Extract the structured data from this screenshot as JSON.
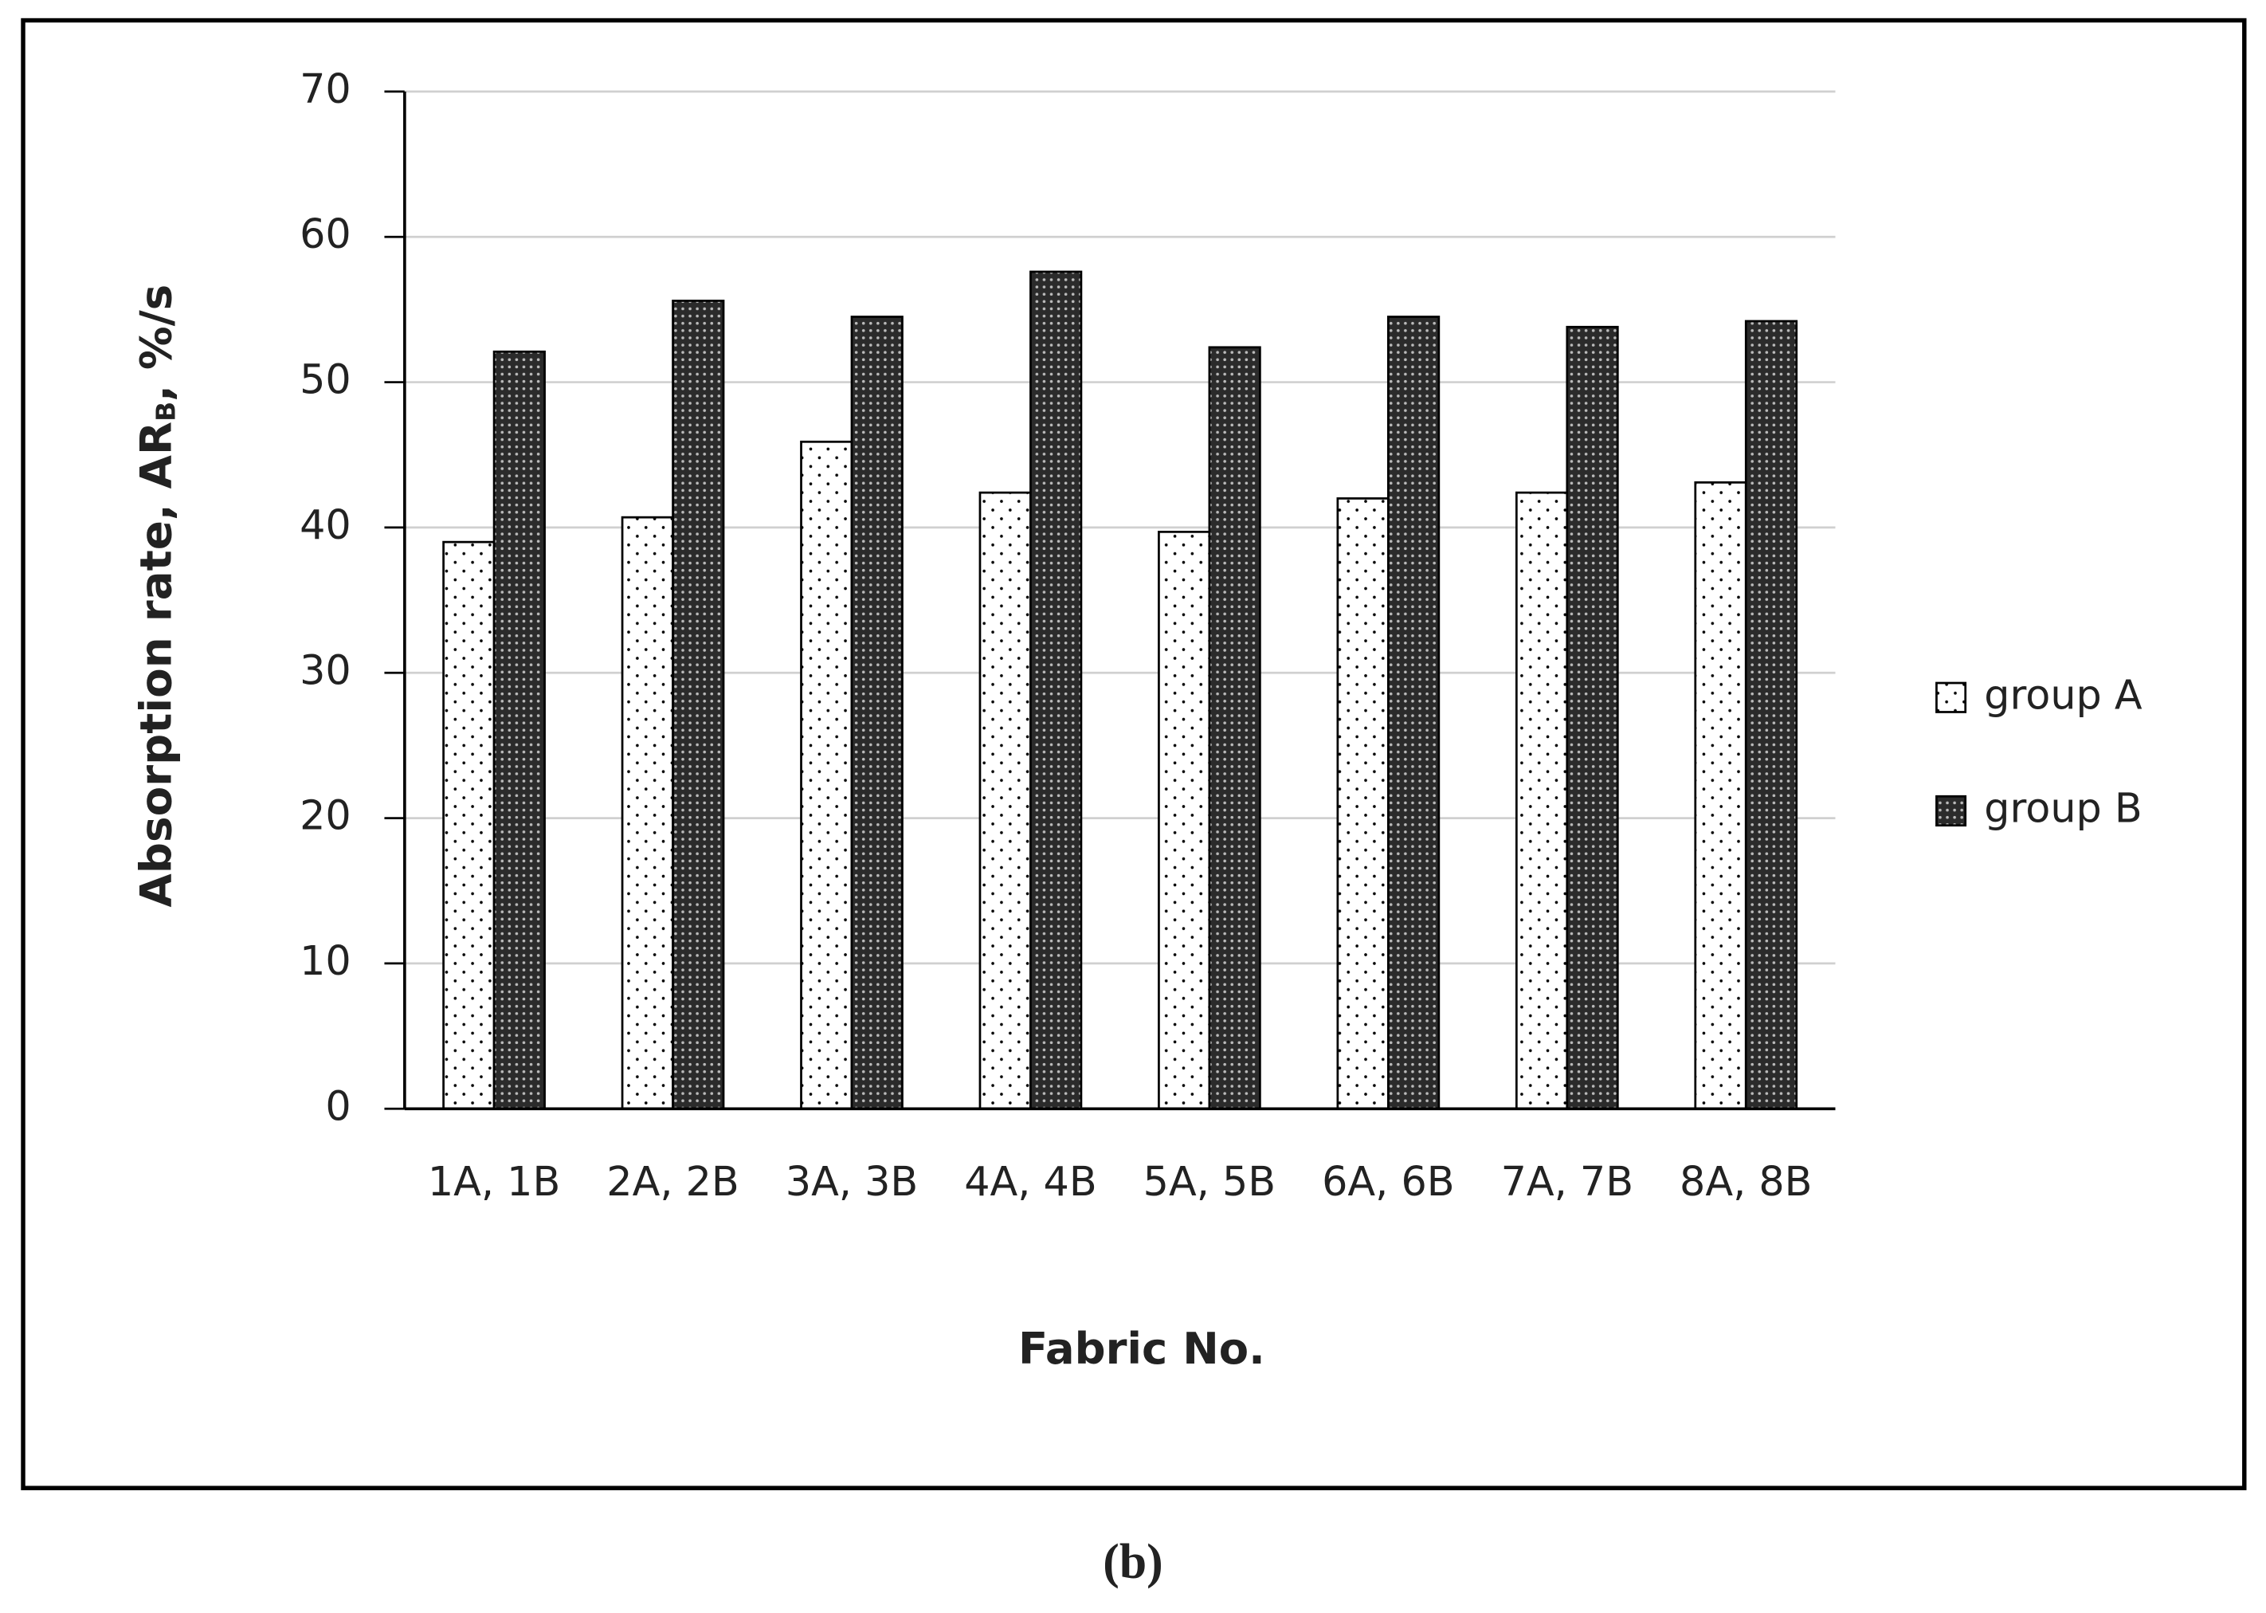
{
  "chart_data": {
    "type": "bar",
    "y_label": "Absorption rate, AR",
    "y_label_sub": "B",
    "y_label_suffix": ", %/s",
    "x_label": "Fabric No.",
    "caption": "(b)",
    "categories": [
      "1A, 1B",
      "2A, 2B",
      "3A, 3B",
      "4A, 4B",
      "5A, 5B",
      "6A, 6B",
      "7A, 7B",
      "8A, 8B"
    ],
    "series": [
      {
        "name": "group A",
        "color": "#ffffff",
        "values": [
          39,
          40.7,
          45.9,
          42.4,
          39.7,
          42,
          42.4,
          43.1
        ]
      },
      {
        "name": "group B",
        "color": "#2b2b2b",
        "values": [
          52.1,
          55.6,
          54.5,
          57.6,
          52.4,
          54.5,
          53.8,
          54.2
        ]
      }
    ],
    "ylim": [
      0,
      70
    ],
    "yticks": [
      0,
      10,
      20,
      30,
      40,
      50,
      60,
      70
    ],
    "grid": true,
    "legend": "right"
  }
}
